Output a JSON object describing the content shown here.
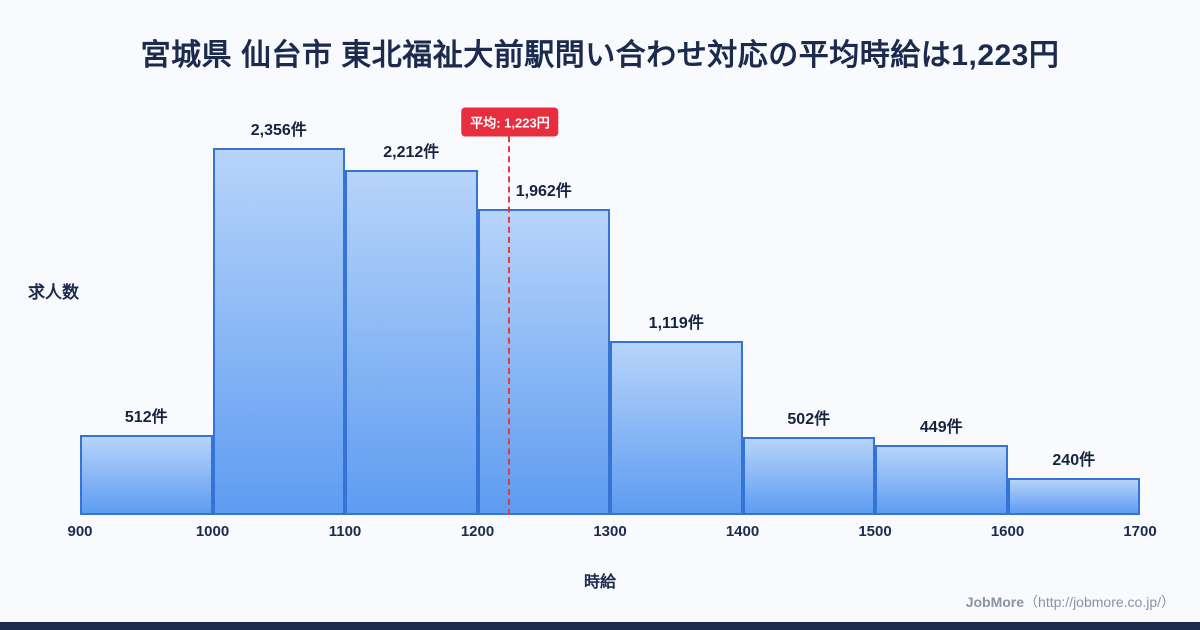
{
  "page": {
    "title": "宮城県 仙台市 東北福祉大前駅問い合わせ対応の平均時給は1,223円",
    "footer": {
      "brand": "JobMore",
      "url_text": "（http://jobmore.co.jp/）"
    },
    "colors": {
      "background": "#f8fafd",
      "navy_text": "#1c2b4d",
      "bar_border": "#3574d4",
      "bar_fill_top": "#b7d4fa",
      "bar_fill_bottom": "#5e9cf1",
      "average_red": "#e62e3e",
      "footer_gray": "#8b93a3",
      "bottom_strip": "#1e2b4d"
    }
  },
  "chart_data": {
    "type": "bar",
    "title": "宮城県 仙台市 東北福祉大前駅問い合わせ対応の平均時給は1,223円",
    "xlabel": "時給",
    "ylabel": "求人数",
    "x_range": [
      900,
      1700
    ],
    "x_ticks": [
      "900",
      "1000",
      "1100",
      "1200",
      "1300",
      "1400",
      "1500",
      "1600",
      "1700"
    ],
    "categories": [
      "900-1000",
      "1000-1100",
      "1100-1200",
      "1200-1300",
      "1300-1400",
      "1400-1500",
      "1500-1600",
      "1600-1700"
    ],
    "values": [
      512,
      2356,
      2212,
      1962,
      1119,
      502,
      449,
      240
    ],
    "value_labels": [
      "512件",
      "2,356件",
      "2,212件",
      "1,962件",
      "1,119件",
      "502件",
      "449件",
      "240件"
    ],
    "ylim": [
      0,
      2600
    ],
    "grid": false,
    "legend": false,
    "average": {
      "value": 1223,
      "label": "平均: 1,223円"
    }
  }
}
